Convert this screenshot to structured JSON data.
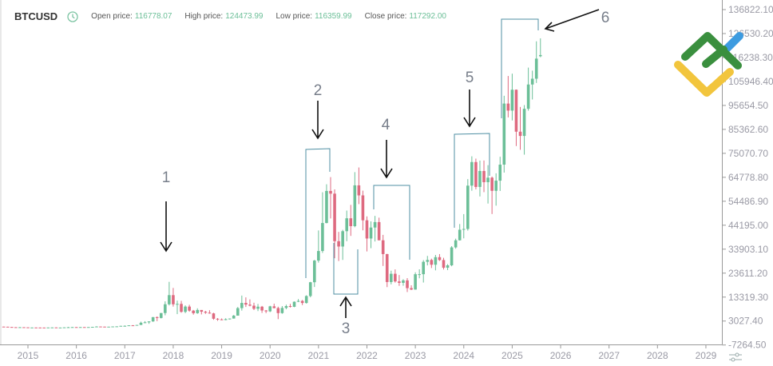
{
  "header": {
    "symbol": "BTCUSD",
    "open_label": "Open price:",
    "open_value": "116778.07",
    "high_label": "High price:",
    "high_value": "124473.99",
    "low_label": "Low price:",
    "low_value": "116359.99",
    "close_label": "Close price:",
    "close_value": "117292.00",
    "clock_icon": "clock-icon"
  },
  "colors": {
    "up": "#6cbf98",
    "down": "#de6a80",
    "annotation": "#4f8fa3",
    "arrow": "#111111",
    "axis_text": "#9a9aa5"
  },
  "annotations": [
    "1",
    "2",
    "3",
    "4",
    "5",
    "6"
  ],
  "chart_data": {
    "type": "candlestick",
    "title": "",
    "xlabel": "",
    "ylabel": "",
    "x_ticks": [
      "2015",
      "2016",
      "2017",
      "2018",
      "2019",
      "2020",
      "2021",
      "2022",
      "2023",
      "2024",
      "2025",
      "2026",
      "2027",
      "2028",
      "2029"
    ],
    "y_ticks": [
      "136822.10",
      "126530.20",
      "116238.30",
      "105946.40",
      "95654.50",
      "85362.60",
      "75070.70",
      "64778.80",
      "54486.90",
      "44195.00",
      "33903.10",
      "23611.20",
      "13319.30",
      "3027.40",
      "-7264.50"
    ],
    "ylim": [
      -7264.5,
      136822.1
    ],
    "xlim": [
      "2014-06",
      "2029-03"
    ],
    "grid": false,
    "candle_fields": [
      "date",
      "open",
      "high",
      "low",
      "close"
    ],
    "candles": [
      [
        "2014-07",
        635,
        650,
        566,
        589
      ],
      [
        "2014-08",
        589,
        600,
        440,
        478
      ],
      [
        "2014-09",
        478,
        480,
        365,
        386
      ],
      [
        "2014-10",
        386,
        413,
        289,
        338
      ],
      [
        "2014-11",
        338,
        457,
        325,
        378
      ],
      [
        "2014-12",
        378,
        384,
        312,
        320
      ],
      [
        "2015-01",
        320,
        320,
        152,
        217
      ],
      [
        "2015-02",
        217,
        265,
        212,
        254
      ],
      [
        "2015-03",
        254,
        300,
        236,
        244
      ],
      [
        "2015-04",
        244,
        261,
        214,
        236
      ],
      [
        "2015-05",
        236,
        247,
        227,
        230
      ],
      [
        "2015-06",
        230,
        267,
        218,
        263
      ],
      [
        "2015-07",
        263,
        315,
        253,
        284
      ],
      [
        "2015-08",
        284,
        285,
        199,
        230
      ],
      [
        "2015-09",
        230,
        245,
        224,
        236
      ],
      [
        "2015-10",
        236,
        336,
        235,
        314
      ],
      [
        "2015-11",
        314,
        503,
        303,
        377
      ],
      [
        "2015-12",
        377,
        469,
        349,
        430
      ],
      [
        "2016-01",
        430,
        463,
        350,
        368
      ],
      [
        "2016-02",
        368,
        445,
        364,
        437
      ],
      [
        "2016-03",
        437,
        440,
        393,
        416
      ],
      [
        "2016-04",
        416,
        468,
        414,
        448
      ],
      [
        "2016-05",
        448,
        550,
        442,
        531
      ],
      [
        "2016-06",
        531,
        780,
        523,
        673
      ],
      [
        "2016-07",
        673,
        704,
        608,
        624
      ],
      [
        "2016-08",
        624,
        626,
        510,
        575
      ],
      [
        "2016-09",
        575,
        631,
        570,
        608
      ],
      [
        "2016-10",
        608,
        720,
        605,
        698
      ],
      [
        "2016-11",
        698,
        757,
        680,
        742
      ],
      [
        "2016-12",
        742,
        980,
        742,
        963
      ],
      [
        "2017-01",
        963,
        1162,
        752,
        970
      ],
      [
        "2017-02",
        970,
        1211,
        934,
        1190
      ],
      [
        "2017-03",
        1190,
        1290,
        891,
        1071
      ],
      [
        "2017-04",
        1071,
        1370,
        1061,
        1348
      ],
      [
        "2017-05",
        1348,
        2760,
        1348,
        2286
      ],
      [
        "2017-06",
        2286,
        2980,
        2100,
        2480
      ],
      [
        "2017-07",
        2480,
        2920,
        1840,
        2875
      ],
      [
        "2017-08",
        2875,
        4770,
        2670,
        4703
      ],
      [
        "2017-09",
        4703,
        5000,
        2980,
        4338
      ],
      [
        "2017-10",
        4338,
        6470,
        4130,
        6468
      ],
      [
        "2017-11",
        6468,
        11500,
        5500,
        10233
      ],
      [
        "2017-12",
        10233,
        19870,
        9720,
        14156
      ],
      [
        "2018-01",
        14156,
        17250,
        9230,
        10221
      ],
      [
        "2018-02",
        10221,
        11790,
        6000,
        10397
      ],
      [
        "2018-03",
        10397,
        11700,
        6600,
        6973
      ],
      [
        "2018-04",
        6973,
        9760,
        6430,
        9240
      ],
      [
        "2018-05",
        9240,
        10020,
        7030,
        7494
      ],
      [
        "2018-06",
        7494,
        7780,
        5780,
        6404
      ],
      [
        "2018-07",
        6404,
        8500,
        6130,
        7780
      ],
      [
        "2018-08",
        7780,
        7760,
        5880,
        7037
      ],
      [
        "2018-09",
        7037,
        7410,
        6100,
        6625
      ],
      [
        "2018-10",
        6625,
        7680,
        6180,
        6317
      ],
      [
        "2018-11",
        6317,
        6580,
        3560,
        4017
      ],
      [
        "2018-12",
        4017,
        4310,
        3130,
        3742
      ],
      [
        "2019-01",
        3742,
        4140,
        3400,
        3457
      ],
      [
        "2019-02",
        3457,
        4210,
        3390,
        3854
      ],
      [
        "2019-03",
        3854,
        4130,
        3700,
        4105
      ],
      [
        "2019-04",
        4105,
        5640,
        4080,
        5350
      ],
      [
        "2019-05",
        5350,
        9070,
        5330,
        8574
      ],
      [
        "2019-06",
        8574,
        13970,
        7520,
        10817
      ],
      [
        "2019-07",
        10817,
        13200,
        9070,
        10085
      ],
      [
        "2019-08",
        10085,
        12330,
        9360,
        9630
      ],
      [
        "2019-09",
        9630,
        10900,
        7740,
        8293
      ],
      [
        "2019-10",
        8293,
        10370,
        7300,
        9199
      ],
      [
        "2019-11",
        9199,
        9510,
        6520,
        7569
      ],
      [
        "2019-12",
        7569,
        7750,
        6430,
        7193
      ],
      [
        "2020-01",
        7193,
        9580,
        6870,
        9350
      ],
      [
        "2020-02",
        9350,
        10500,
        8470,
        8599
      ],
      [
        "2020-03",
        8599,
        9190,
        3850,
        6438
      ],
      [
        "2020-04",
        6438,
        9460,
        6160,
        8658
      ],
      [
        "2020-05",
        8658,
        10070,
        8110,
        9461
      ],
      [
        "2020-06",
        9461,
        10400,
        8830,
        9137
      ],
      [
        "2020-07",
        9137,
        11440,
        8980,
        11323
      ],
      [
        "2020-08",
        11323,
        12470,
        11150,
        11680
      ],
      [
        "2020-09",
        11680,
        12070,
        9880,
        10784
      ],
      [
        "2020-10",
        10784,
        14100,
        10520,
        13781
      ],
      [
        "2020-11",
        13781,
        19860,
        13230,
        19700
      ],
      [
        "2020-12",
        19700,
        29300,
        17650,
        29001
      ],
      [
        "2021-01",
        29001,
        41950,
        28130,
        33114
      ],
      [
        "2021-02",
        33114,
        58350,
        32300,
        45137
      ],
      [
        "2021-03",
        45137,
        61780,
        45000,
        58918
      ],
      [
        "2021-04",
        58918,
        64860,
        47100,
        57750
      ],
      [
        "2021-05",
        57750,
        59590,
        30000,
        37332
      ],
      [
        "2021-06",
        37332,
        41330,
        28800,
        35041
      ],
      [
        "2021-07",
        35041,
        42230,
        29280,
        41626
      ],
      [
        "2021-08",
        41626,
        50480,
        37330,
        47166
      ],
      [
        "2021-09",
        47166,
        52920,
        39600,
        43791
      ],
      [
        "2021-10",
        43791,
        67000,
        43320,
        61318
      ],
      [
        "2021-11",
        61318,
        69000,
        53260,
        57005
      ],
      [
        "2021-12",
        57005,
        59040,
        42000,
        46306
      ],
      [
        "2022-01",
        46306,
        47990,
        32930,
        38483
      ],
      [
        "2022-02",
        38483,
        45850,
        34320,
        43194
      ],
      [
        "2022-03",
        43194,
        48190,
        37200,
        45538
      ],
      [
        "2022-04",
        45538,
        47440,
        37700,
        37714
      ],
      [
        "2022-05",
        37714,
        40050,
        26700,
        31792
      ],
      [
        "2022-06",
        31792,
        31900,
        17600,
        19785
      ],
      [
        "2022-07",
        19785,
        24670,
        18780,
        23336
      ],
      [
        "2022-08",
        23336,
        25210,
        19540,
        20050
      ],
      [
        "2022-09",
        20050,
        22790,
        18150,
        19432
      ],
      [
        "2022-10",
        19432,
        20990,
        18200,
        20495
      ],
      [
        "2022-11",
        20495,
        21470,
        15480,
        17168
      ],
      [
        "2022-12",
        17168,
        18390,
        16330,
        16548
      ],
      [
        "2023-01",
        16548,
        23950,
        16500,
        23139
      ],
      [
        "2023-02",
        23139,
        25250,
        21400,
        23147
      ],
      [
        "2023-03",
        23147,
        29200,
        19570,
        28478
      ],
      [
        "2023-04",
        28478,
        31000,
        26940,
        29268
      ],
      [
        "2023-05",
        29268,
        29820,
        25800,
        27219
      ],
      [
        "2023-06",
        27219,
        31430,
        24800,
        30477
      ],
      [
        "2023-07",
        30477,
        31800,
        28860,
        29230
      ],
      [
        "2023-08",
        29230,
        30200,
        25170,
        25931
      ],
      [
        "2023-09",
        25931,
        27480,
        24900,
        26967
      ],
      [
        "2023-10",
        26967,
        35200,
        26560,
        34667
      ],
      [
        "2023-11",
        34667,
        38420,
        34100,
        37712
      ],
      [
        "2023-12",
        37712,
        44700,
        37630,
        42265
      ],
      [
        "2024-01",
        42265,
        48970,
        38550,
        42582
      ],
      [
        "2024-02",
        42582,
        64000,
        41880,
        61198
      ],
      [
        "2024-03",
        61198,
        73800,
        59000,
        71333
      ],
      [
        "2024-04",
        71333,
        72800,
        59600,
        60636
      ],
      [
        "2024-05",
        60636,
        71950,
        56550,
        67491
      ],
      [
        "2024-06",
        67491,
        71990,
        58400,
        62678
      ],
      [
        "2024-07",
        62678,
        70000,
        53500,
        64620
      ],
      [
        "2024-08",
        64620,
        65100,
        49000,
        58970
      ],
      [
        "2024-09",
        58970,
        66500,
        52600,
        63330
      ],
      [
        "2024-10",
        63330,
        73600,
        58900,
        70215
      ],
      [
        "2024-11",
        70215,
        99800,
        66800,
        96449
      ],
      [
        "2024-12",
        96449,
        108300,
        90500,
        93429
      ],
      [
        "2025-01",
        93429,
        109300,
        89200,
        102405
      ],
      [
        "2025-02",
        102405,
        102500,
        78200,
        84373
      ],
      [
        "2025-03",
        84373,
        95000,
        76600,
        82548
      ],
      [
        "2025-04",
        82548,
        95800,
        74500,
        94207
      ],
      [
        "2025-05",
        94207,
        111900,
        93400,
        104638
      ],
      [
        "2025-06",
        104638,
        110600,
        98200,
        107135
      ],
      [
        "2025-07",
        107135,
        123200,
        105300,
        115758
      ],
      [
        "2025-08",
        116778.07,
        124473.99,
        116359.99,
        117292.0
      ]
    ]
  }
}
